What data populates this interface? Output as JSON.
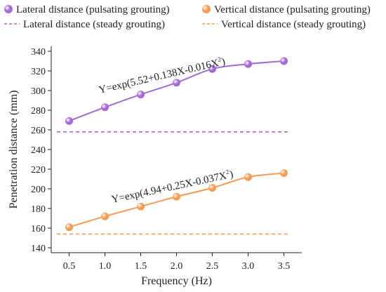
{
  "chart_data": {
    "type": "line",
    "xlabel": "Frequency (Hz)",
    "ylabel": "Penetration distance (mm)",
    "x": [
      0.5,
      1.0,
      1.5,
      2.0,
      2.5,
      3.0,
      3.5
    ],
    "x_tick_labels": [
      "0.5",
      "1.0",
      "1.5",
      "2.0",
      "2.5",
      "3.0",
      "3.5"
    ],
    "xlim": [
      0.25,
      3.75
    ],
    "ylim": [
      135,
      345
    ],
    "y_ticks": [
      140,
      160,
      180,
      200,
      220,
      240,
      260,
      280,
      300,
      320,
      340
    ],
    "grid": false,
    "legend_position": "top",
    "series": [
      {
        "name": "Lateral distance (pulsating grouting)",
        "style": "line-marker",
        "color": "#a469d8",
        "values": [
          269,
          283,
          296,
          308,
          322,
          327,
          330
        ]
      },
      {
        "name": "Vertical distance (pulsating grouting)",
        "style": "line-marker",
        "color": "#f79a52",
        "values": [
          161,
          172,
          182,
          192,
          201,
          212,
          216
        ]
      },
      {
        "name": "Lateral distance (steady grouting)",
        "style": "dashed",
        "color": "#a469d8",
        "constant": 258
      },
      {
        "name": "Vertical distance (steady grouting)",
        "style": "dashed",
        "color": "#f79a52",
        "constant": 154
      }
    ],
    "annotations": [
      {
        "target": "lateral",
        "base": "Y=exp(5.52+0.138X-0.016X",
        "sup": "2",
        "close": ")"
      },
      {
        "target": "vertical",
        "base": "Y=exp(4.94+0.25X-0.037X",
        "sup": "2",
        "close": ")"
      }
    ]
  }
}
